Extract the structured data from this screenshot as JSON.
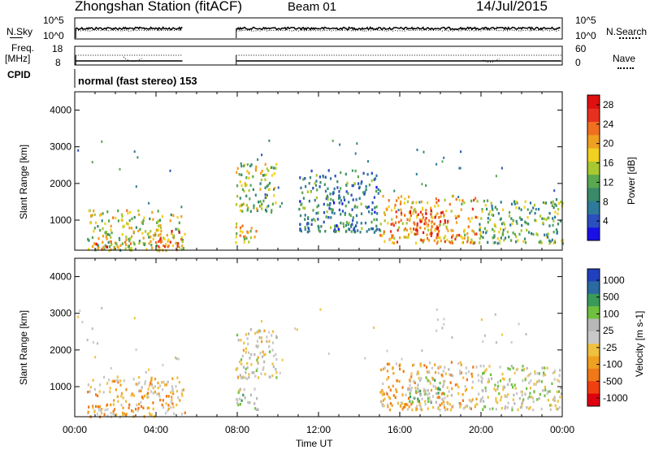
{
  "header": {
    "station": "Zhongshan Station (fitACF)",
    "beam": "Beam 01",
    "date": "14/Jul/2015"
  },
  "top_panels": {
    "nsky_label": "N.Sky",
    "nsearch_label": "N.Search",
    "nsky_ticks": [
      "10^5",
      "10^0"
    ],
    "nsearch_ticks": [
      "10^5",
      "10^0"
    ],
    "freq_label": "Freq.",
    "freq_unit": "[MHz]",
    "freq_ticks": [
      "18",
      "8"
    ],
    "nave_label": "Nave",
    "nave_ticks": [
      "60",
      "0"
    ],
    "cpid_label": "CPID",
    "cpid_text": "normal (fast stereo) 153"
  },
  "chart_data": [
    {
      "type": "heatmap",
      "title": "",
      "xlabel": "",
      "ylabel": "Slant Range [km]",
      "xlim": [
        0,
        24
      ],
      "ylim": [
        180,
        4500
      ],
      "x_ticks": [
        "00:00",
        "04:00",
        "08:00",
        "12:00",
        "16:00",
        "20:00",
        "00:00"
      ],
      "y_ticks": [
        "1000",
        "2000",
        "3000",
        "4000"
      ],
      "colorbar_label": "Power [dB]",
      "colorbar_ticks": [
        "4",
        "8",
        "12",
        "16",
        "20",
        "24",
        "28"
      ],
      "colorbar_range": [
        0,
        30
      ],
      "regions": [
        {
          "x": [
            0.6,
            5.4
          ],
          "y": [
            200,
            1300
          ],
          "value": 16
        },
        {
          "x": [
            0.9,
            1.8
          ],
          "y": [
            200,
            600
          ],
          "value": 27
        },
        {
          "x": [
            3.5,
            5.3
          ],
          "y": [
            300,
            800
          ],
          "value": 22
        },
        {
          "x": [
            7.9,
            9.9
          ],
          "y": [
            1250,
            2600
          ],
          "value": 14
        },
        {
          "x": [
            7.9,
            9.0
          ],
          "y": [
            400,
            1000
          ],
          "value": 18
        },
        {
          "x": [
            11.0,
            15.0
          ],
          "y": [
            700,
            2400
          ],
          "value": 8
        },
        {
          "x": [
            15.0,
            19.8
          ],
          "y": [
            400,
            1700
          ],
          "value": 20
        },
        {
          "x": [
            16.3,
            18.2
          ],
          "y": [
            600,
            1300
          ],
          "value": 26
        },
        {
          "x": [
            19.8,
            24.0
          ],
          "y": [
            400,
            1600
          ],
          "value": 12
        }
      ]
    },
    {
      "type": "heatmap",
      "title": "",
      "xlabel": "Time UT",
      "ylabel": "Slant Range [km]",
      "xlim": [
        0,
        24
      ],
      "ylim": [
        180,
        4500
      ],
      "x_ticks": [
        "00:00",
        "04:00",
        "08:00",
        "12:00",
        "16:00",
        "20:00",
        "00:00"
      ],
      "y_ticks": [
        "1000",
        "2000",
        "3000",
        "4000"
      ],
      "colorbar_label": "Velocity [m s-1]",
      "colorbar_ticks": [
        "1000",
        "500",
        "100",
        "25",
        "-25",
        "-100",
        "-500",
        "-1000"
      ],
      "regions": [
        {
          "x": [
            0.6,
            5.4
          ],
          "y": [
            200,
            1300
          ],
          "velocity": -300
        },
        {
          "x": [
            7.9,
            9.9
          ],
          "y": [
            1250,
            2600
          ],
          "velocity": 0
        },
        {
          "x": [
            7.9,
            9.0
          ],
          "y": [
            400,
            1000
          ],
          "velocity": 200
        },
        {
          "x": [
            15.0,
            19.8
          ],
          "y": [
            400,
            1700
          ],
          "velocity": -300
        },
        {
          "x": [
            16.3,
            18.2
          ],
          "y": [
            600,
            1300
          ],
          "velocity": 400
        },
        {
          "x": [
            19.8,
            24.0
          ],
          "y": [
            400,
            1600
          ],
          "velocity": 100
        }
      ]
    }
  ]
}
